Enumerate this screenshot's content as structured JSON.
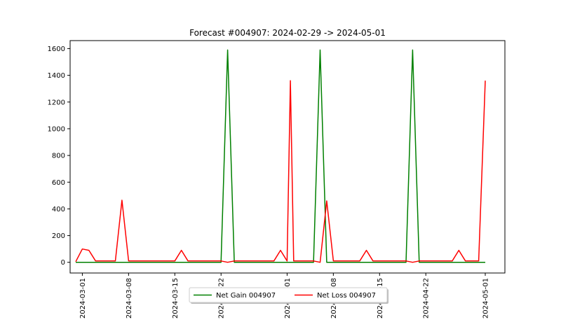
{
  "chart_data": {
    "type": "line",
    "title": "Forecast #004907: 2024-02-29 -> 2024-05-01",
    "xlabel": "",
    "ylabel": "",
    "x_range": [
      "2024-02-29",
      "2024-05-01"
    ],
    "ylim": [
      -80,
      1660
    ],
    "y_ticks": [
      0,
      200,
      400,
      600,
      800,
      1000,
      1200,
      1400,
      1600
    ],
    "x_ticks": [
      "2024-03-01",
      "2024-03-08",
      "2024-03-15",
      "2024-03-22",
      "2024-04-01",
      "2024-04-08",
      "2024-04-15",
      "2024-04-22",
      "2024-05-01"
    ],
    "grid": false,
    "legend_position": "bottom-center",
    "series": [
      {
        "name": "Net Gain 004907",
        "color": "#008000",
        "points": [
          [
            "2024-02-29",
            0
          ],
          [
            "2024-03-22",
            0
          ],
          [
            "2024-03-23",
            1590
          ],
          [
            "2024-03-24",
            0
          ],
          [
            "2024-04-05",
            0
          ],
          [
            "2024-04-06",
            1590
          ],
          [
            "2024-04-07",
            0
          ],
          [
            "2024-04-19",
            0
          ],
          [
            "2024-04-20",
            1590
          ],
          [
            "2024-04-21",
            0
          ],
          [
            "2024-05-01",
            0
          ]
        ]
      },
      {
        "name": "Net Loss 004907",
        "color": "#ff0000",
        "points": [
          [
            "2024-02-29",
            5
          ],
          [
            "2024-03-01",
            100
          ],
          [
            "2024-03-02",
            90
          ],
          [
            "2024-03-03",
            10
          ],
          [
            "2024-03-06",
            10
          ],
          [
            "2024-03-07",
            465
          ],
          [
            "2024-03-08",
            10
          ],
          [
            "2024-03-15",
            10
          ],
          [
            "2024-03-16",
            90
          ],
          [
            "2024-03-17",
            10
          ],
          [
            "2024-03-22",
            10
          ],
          [
            "2024-03-23",
            0
          ],
          [
            "2024-03-24",
            10
          ],
          [
            "2024-03-30",
            10
          ],
          [
            "2024-03-31",
            90
          ],
          [
            "2024-04-01",
            10
          ],
          [
            "2024-04-01T12",
            1360
          ],
          [
            "2024-04-02",
            10
          ],
          [
            "2024-04-05",
            10
          ],
          [
            "2024-04-06",
            0
          ],
          [
            "2024-04-07",
            460
          ],
          [
            "2024-04-08",
            10
          ],
          [
            "2024-04-12",
            10
          ],
          [
            "2024-04-13",
            90
          ],
          [
            "2024-04-14",
            10
          ],
          [
            "2024-04-19",
            10
          ],
          [
            "2024-04-20",
            0
          ],
          [
            "2024-04-21",
            10
          ],
          [
            "2024-04-26",
            10
          ],
          [
            "2024-04-27",
            90
          ],
          [
            "2024-04-28",
            10
          ],
          [
            "2024-04-30",
            10
          ],
          [
            "2024-05-01",
            1360
          ]
        ]
      }
    ]
  }
}
